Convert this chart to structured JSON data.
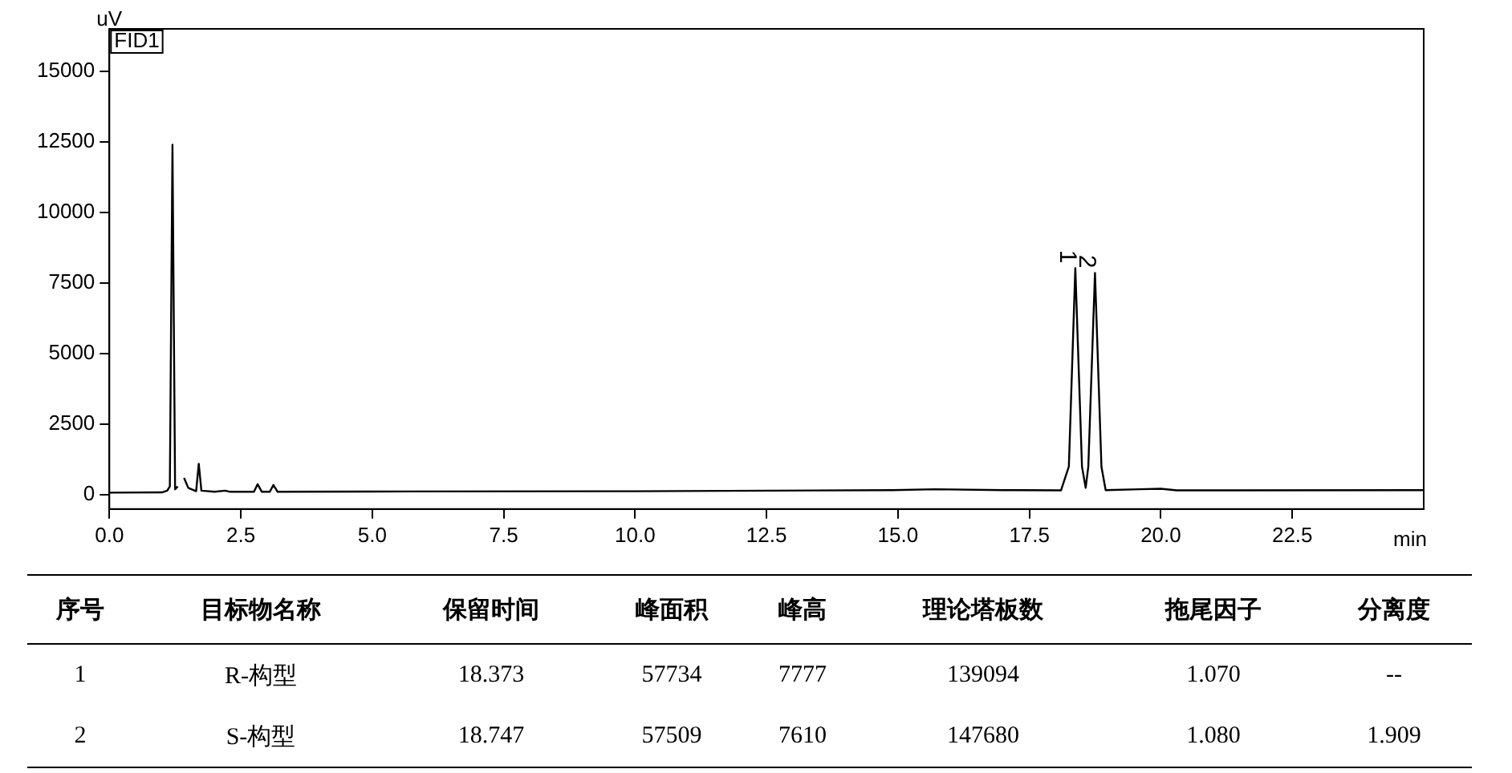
{
  "chart_data": [
    {
      "type": "line",
      "xlabel": "min",
      "ylabel": "uV",
      "annotations": [
        "FID1",
        {
          "text": "1",
          "x": 18.373,
          "y": 8030
        },
        {
          "text": "2",
          "x": 18.747,
          "y": 7860
        }
      ],
      "series": [
        {
          "color": "#000000",
          "x": [
            0,
            1.0,
            1.1,
            1.15,
            1.2,
            1.25,
            1.3,
            1.33,
            1.38,
            1.42,
            1.5,
            1.65,
            1.7,
            1.75,
            2.0,
            2.2,
            2.3,
            2.75,
            2.82,
            2.9,
            3.05,
            3.12,
            3.2,
            5,
            10,
            14.9,
            15.7,
            17,
            18.1,
            18.25,
            18.373,
            18.5,
            18.57,
            18.62,
            18.747,
            18.87,
            18.95,
            19.6,
            20,
            20.3,
            25
          ],
          "values": [
            80,
            90,
            150,
            300,
            12400,
            200,
            300,
            null,
            null,
            600,
            250,
            130,
            1100,
            150,
            110,
            150,
            110,
            110,
            380,
            110,
            110,
            350,
            110,
            120,
            130,
            170,
            200,
            170,
            160,
            1000,
            8030,
            1000,
            250,
            1000,
            7860,
            1000,
            170,
            200,
            220,
            160,
            170
          ]
        }
      ],
      "xlim": [
        0,
        25
      ],
      "xticks": [
        {
          "value": 0,
          "label": "0.0"
        },
        2.5,
        {
          "value": 5,
          "label": "5.0"
        },
        7.5,
        {
          "value": 10,
          "label": "10.0"
        },
        12.5,
        {
          "value": 15,
          "label": "15.0"
        },
        17.5,
        {
          "value": 20,
          "label": "20.0"
        },
        22.5
      ],
      "ylim": [
        -500,
        16500
      ],
      "yticks": [
        0,
        2500,
        5000,
        7500,
        10000,
        12500,
        15000
      ],
      "grid": false,
      "legend": false,
      "marker": "none",
      "line_style": "solid"
    },
    {
      "type": "other",
      "categories": [
        "序号",
        "目标物名称",
        "保留时间",
        "峰面积",
        "峰高",
        "理论塔板数",
        "拖尾因子",
        "分离度"
      ],
      "annotations": [
        "1",
        "R-构型",
        "18.373",
        "57734",
        "7777",
        "139094",
        "1.070",
        "--",
        "2",
        "S-构型",
        "18.747",
        "57509",
        "7610",
        "147680",
        "1.080",
        "1.909"
      ]
    }
  ]
}
